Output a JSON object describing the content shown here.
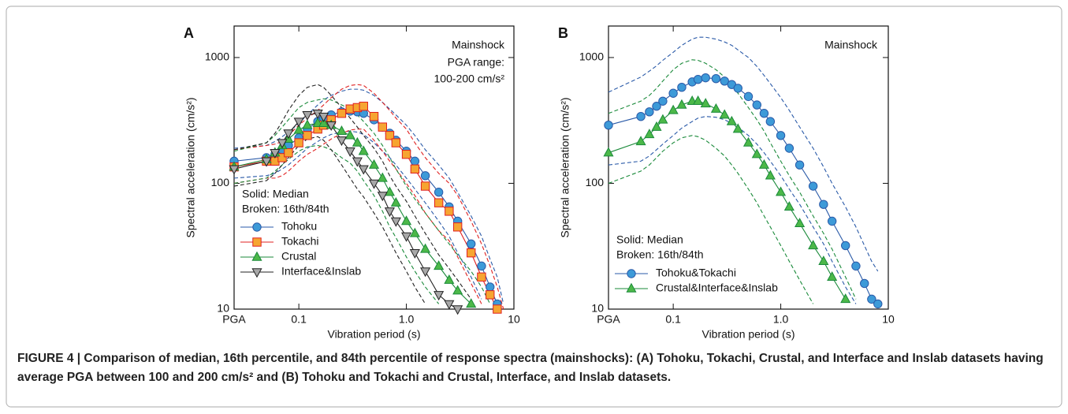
{
  "caption": "FIGURE 4 | Comparison of median, 16th percentile, and 84th percentile of response spectra (mainshocks): (A) Tohoku, Tokachi, Crustal, and Interface and Inslab datasets having average PGA between 100 and 200 cm/s² and (B) Tohoku and Tokachi and Crustal, Interface, and Inslab datasets.",
  "chart_data": [
    {
      "type": "line",
      "label": "A",
      "log_x": true,
      "log_y": true,
      "xlabel": "Vibration period (s)",
      "ylabel": "Spectral acceleration (cm/s²)",
      "annotations": [
        "Mainshock",
        "PGA range:",
        "100-200 cm/s²"
      ],
      "notes": [
        "Solid: Median",
        "Broken: 16th/84th"
      ],
      "xlim": [
        0.025,
        10
      ],
      "ylim": [
        10,
        1780
      ],
      "xticks": [
        {
          "value": 0.025,
          "label": "PGA"
        },
        0.1,
        {
          "value": 1,
          "label": "1.0"
        },
        10
      ],
      "yticks": [
        10,
        100,
        1000
      ],
      "x": [
        0.025,
        0.05,
        0.06,
        0.07,
        0.08,
        0.1,
        0.12,
        0.15,
        0.17,
        0.2,
        0.25,
        0.3,
        0.35,
        0.4,
        0.5,
        0.6,
        0.7,
        0.8,
        1,
        1.2,
        1.5,
        2,
        2.5,
        3,
        4,
        5,
        6,
        7,
        8
      ],
      "series": [
        {
          "name": "Tohoku",
          "color": "#2a5aa8",
          "marker": "circle",
          "marker_fill": "#3d9ad8",
          "values": [
            150,
            160,
            170,
            185,
            200,
            230,
            270,
            310,
            330,
            350,
            370,
            375,
            370,
            360,
            320,
            280,
            250,
            220,
            180,
            150,
            115,
            85,
            65,
            50,
            33,
            22,
            15,
            11,
            null
          ],
          "p84": [
            190,
            200,
            215,
            235,
            255,
            300,
            350,
            420,
            460,
            500,
            540,
            560,
            560,
            550,
            500,
            440,
            390,
            350,
            290,
            240,
            185,
            140,
            110,
            85,
            55,
            38,
            25,
            18,
            11
          ],
          "p16": [
            110,
            115,
            120,
            130,
            140,
            165,
            190,
            215,
            230,
            245,
            255,
            260,
            255,
            245,
            210,
            180,
            160,
            140,
            110,
            90,
            70,
            50,
            38,
            28,
            18,
            12,
            null,
            null,
            null
          ]
        },
        {
          "name": "Tokachi",
          "color": "#e02020",
          "marker": "square",
          "marker_fill": "#f6a531",
          "values": [
            135,
            150,
            150,
            160,
            175,
            210,
            240,
            270,
            290,
            320,
            360,
            390,
            400,
            410,
            340,
            280,
            240,
            210,
            170,
            130,
            95,
            70,
            60,
            45,
            28,
            18,
            13,
            10,
            null
          ],
          "p84": [
            185,
            200,
            205,
            215,
            240,
            290,
            330,
            380,
            420,
            480,
            560,
            600,
            610,
            600,
            520,
            440,
            380,
            330,
            270,
            210,
            160,
            120,
            100,
            80,
            50,
            33,
            22,
            15,
            10
          ],
          "p16": [
            100,
            110,
            110,
            115,
            125,
            150,
            170,
            190,
            205,
            225,
            250,
            265,
            270,
            270,
            220,
            180,
            150,
            130,
            100,
            80,
            58,
            42,
            35,
            26,
            16,
            11,
            null,
            null,
            null
          ]
        },
        {
          "name": "Crustal",
          "color": "#1a8a3a",
          "marker": "triangle",
          "marker_fill": "#4cb849",
          "values": [
            135,
            155,
            175,
            200,
            225,
            265,
            290,
            300,
            300,
            290,
            260,
            240,
            210,
            180,
            140,
            110,
            85,
            70,
            50,
            40,
            30,
            22,
            17,
            14,
            11,
            null,
            null,
            null,
            null
          ],
          "p84": [
            180,
            210,
            240,
            280,
            320,
            400,
            440,
            460,
            470,
            460,
            420,
            390,
            350,
            310,
            250,
            200,
            160,
            130,
            95,
            75,
            58,
            42,
            33,
            27,
            20,
            15,
            11,
            null,
            null
          ],
          "p16": [
            100,
            110,
            125,
            140,
            155,
            180,
            195,
            200,
            195,
            185,
            160,
            145,
            125,
            105,
            80,
            60,
            45,
            37,
            26,
            20,
            15,
            11,
            null,
            null,
            null,
            null,
            null,
            null,
            null
          ]
        },
        {
          "name": "Interface&Inslab",
          "color": "#222222",
          "marker": "triangle-down",
          "marker_fill": "#a8a8a8",
          "values": [
            130,
            150,
            175,
            210,
            250,
            310,
            350,
            360,
            340,
            290,
            220,
            180,
            150,
            130,
            100,
            80,
            60,
            50,
            38,
            28,
            20,
            13,
            11,
            10,
            null,
            null,
            null,
            null,
            null
          ],
          "p84": [
            185,
            210,
            250,
            310,
            380,
            500,
            580,
            610,
            580,
            500,
            400,
            330,
            280,
            240,
            190,
            150,
            115,
            95,
            72,
            55,
            40,
            27,
            21,
            17,
            12,
            null,
            null,
            null,
            null
          ],
          "p16": [
            95,
            105,
            120,
            140,
            160,
            200,
            225,
            235,
            220,
            185,
            140,
            110,
            90,
            78,
            58,
            45,
            35,
            28,
            20,
            15,
            11,
            null,
            null,
            null,
            null,
            null,
            null,
            null,
            null
          ]
        }
      ]
    },
    {
      "type": "line",
      "label": "B",
      "log_x": true,
      "log_y": true,
      "xlabel": "Vibration period (s)",
      "ylabel": "Spectral acceleration (cm/s²)",
      "annotations": [
        "Mainshock"
      ],
      "notes": [
        "Solid: Median",
        "Broken: 16th/84th"
      ],
      "xlim": [
        0.025,
        10
      ],
      "ylim": [
        10,
        1780
      ],
      "xticks": [
        {
          "value": 0.025,
          "label": "PGA"
        },
        0.1,
        {
          "value": 1,
          "label": "1.0"
        },
        10
      ],
      "yticks": [
        10,
        100,
        1000
      ],
      "x": [
        0.025,
        0.05,
        0.06,
        0.07,
        0.08,
        0.1,
        0.12,
        0.15,
        0.17,
        0.2,
        0.25,
        0.3,
        0.35,
        0.4,
        0.5,
        0.6,
        0.7,
        0.8,
        1,
        1.2,
        1.5,
        2,
        2.5,
        3,
        4,
        5,
        6,
        7,
        8
      ],
      "series": [
        {
          "name": "Tohoku&Tokachi",
          "color": "#2a5aa8",
          "marker": "circle",
          "marker_fill": "#3d9ad8",
          "values": [
            290,
            340,
            370,
            410,
            450,
            520,
            580,
            640,
            670,
            690,
            680,
            650,
            610,
            570,
            490,
            420,
            360,
            310,
            240,
            190,
            140,
            95,
            68,
            50,
            32,
            22,
            16,
            12,
            11
          ],
          "p84": [
            530,
            700,
            780,
            860,
            950,
            1100,
            1250,
            1400,
            1450,
            1450,
            1400,
            1330,
            1250,
            1150,
            1000,
            850,
            720,
            620,
            480,
            380,
            280,
            190,
            135,
            100,
            65,
            45,
            32,
            24,
            20
          ],
          "p16": [
            140,
            150,
            165,
            185,
            205,
            240,
            275,
            310,
            330,
            340,
            335,
            320,
            300,
            280,
            240,
            205,
            175,
            150,
            115,
            90,
            68,
            45,
            33,
            24,
            15,
            11,
            null,
            null,
            null
          ]
        },
        {
          "name": "Crustal&Interface&Inslab",
          "color": "#1a8a3a",
          "marker": "triangle",
          "marker_fill": "#4cb849",
          "values": [
            175,
            215,
            245,
            280,
            320,
            380,
            420,
            450,
            450,
            430,
            390,
            350,
            310,
            270,
            210,
            170,
            140,
            115,
            85,
            65,
            48,
            32,
            24,
            18,
            12,
            null,
            null,
            null,
            null
          ],
          "p84": [
            360,
            450,
            500,
            570,
            650,
            800,
            900,
            960,
            950,
            900,
            800,
            700,
            600,
            520,
            400,
            320,
            260,
            210,
            150,
            115,
            85,
            55,
            40,
            30,
            18,
            12,
            null,
            null,
            null
          ],
          "p16": [
            100,
            125,
            140,
            160,
            180,
            210,
            230,
            240,
            235,
            220,
            190,
            165,
            140,
            120,
            90,
            70,
            55,
            45,
            32,
            24,
            17,
            11,
            null,
            null,
            null,
            null,
            null,
            null,
            null
          ]
        }
      ]
    }
  ]
}
